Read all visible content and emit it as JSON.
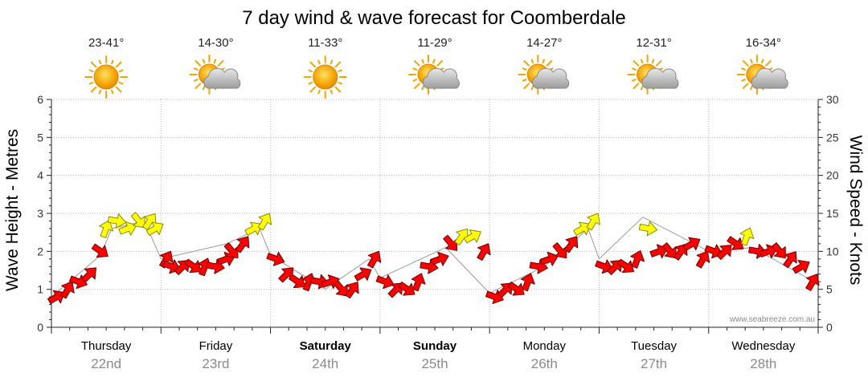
{
  "chart_data": {
    "type": "line",
    "title": "7 day wind & wave forecast for Coomberdale",
    "ylabel_left": "Wave Height - Metres",
    "ylabel_right": "Wind Speed - Knots",
    "ylim_left": [
      0,
      6
    ],
    "ylim_right": [
      0,
      30
    ],
    "left_ticks": [
      "0",
      "1",
      "2",
      "3",
      "4",
      "5",
      "6"
    ],
    "right_ticks": [
      "0",
      "5",
      "10",
      "15",
      "20",
      "25",
      "30"
    ],
    "grid": true,
    "days": [
      {
        "name": "Thursday",
        "date": "22nd",
        "temp": "23-41°",
        "weather": "sunny",
        "bold": false
      },
      {
        "name": "Friday",
        "date": "23rd",
        "temp": "14-30°",
        "weather": "partly-cloudy",
        "bold": false
      },
      {
        "name": "Saturday",
        "date": "24th",
        "temp": "11-33°",
        "weather": "sunny",
        "bold": true
      },
      {
        "name": "Sunday",
        "date": "25th",
        "temp": "11-29°",
        "weather": "partly-cloudy",
        "bold": true
      },
      {
        "name": "Monday",
        "date": "26th",
        "temp": "14-27°",
        "weather": "partly-cloudy",
        "bold": false
      },
      {
        "name": "Tuesday",
        "date": "27th",
        "temp": "12-31°",
        "weather": "partly-cloudy",
        "bold": false
      },
      {
        "name": "Wednesday",
        "date": "28th",
        "temp": "16-34°",
        "weather": "partly-cloudy",
        "bold": false
      }
    ],
    "series": [
      {
        "name": "Wind Speed - Knots",
        "axis": "right",
        "unit": "day",
        "points": [
          [
            0.0,
            4
          ],
          [
            0.1,
            5
          ],
          [
            0.2,
            6
          ],
          [
            0.3,
            7
          ],
          [
            0.4,
            10
          ],
          [
            0.45,
            13
          ],
          [
            0.55,
            14
          ],
          [
            0.65,
            13
          ],
          [
            0.75,
            14
          ],
          [
            0.85,
            14
          ],
          [
            0.9,
            13
          ],
          [
            1.0,
            9
          ],
          [
            1.05,
            8
          ],
          [
            1.15,
            8
          ],
          [
            1.25,
            8
          ],
          [
            1.35,
            8
          ],
          [
            1.45,
            8
          ],
          [
            1.55,
            9
          ],
          [
            1.6,
            10
          ],
          [
            1.7,
            11
          ],
          [
            1.8,
            13
          ],
          [
            1.9,
            14
          ],
          [
            2.0,
            9
          ],
          [
            2.1,
            7
          ],
          [
            2.2,
            6
          ],
          [
            2.3,
            6
          ],
          [
            2.4,
            6
          ],
          [
            2.5,
            6
          ],
          [
            2.6,
            5
          ],
          [
            2.7,
            5
          ],
          [
            2.8,
            7
          ],
          [
            2.9,
            9
          ],
          [
            3.0,
            6
          ],
          [
            3.1,
            5
          ],
          [
            3.2,
            5
          ],
          [
            3.3,
            6
          ],
          [
            3.4,
            8
          ],
          [
            3.5,
            9
          ],
          [
            3.6,
            11
          ],
          [
            3.7,
            12
          ],
          [
            3.8,
            12
          ],
          [
            3.9,
            10
          ],
          [
            4.0,
            4
          ],
          [
            4.1,
            5
          ],
          [
            4.2,
            5
          ],
          [
            4.3,
            6
          ],
          [
            4.4,
            8
          ],
          [
            4.5,
            9
          ],
          [
            4.6,
            10
          ],
          [
            4.7,
            11
          ],
          [
            4.8,
            13
          ],
          [
            4.9,
            14
          ],
          [
            5.0,
            8
          ],
          [
            5.1,
            8
          ],
          [
            5.2,
            8
          ],
          [
            5.3,
            9
          ],
          [
            5.4,
            13
          ],
          [
            5.5,
            10
          ],
          [
            5.6,
            10
          ],
          [
            5.7,
            10
          ],
          [
            5.8,
            11
          ],
          [
            5.9,
            9
          ],
          [
            6.0,
            10
          ],
          [
            6.1,
            10
          ],
          [
            6.2,
            11
          ],
          [
            6.3,
            12
          ],
          [
            6.4,
            10
          ],
          [
            6.5,
            10
          ],
          [
            6.6,
            10
          ],
          [
            6.7,
            9
          ],
          [
            6.8,
            8
          ],
          [
            6.9,
            6
          ]
        ]
      },
      {
        "name": "Wave Height - Metres",
        "axis": "left",
        "unit": "day",
        "points": [
          [
            0.0,
            0.8
          ],
          [
            0.45,
            1.9
          ],
          [
            0.55,
            2.6
          ],
          [
            0.85,
            2.8
          ],
          [
            1.0,
            1.8
          ],
          [
            1.6,
            2.2
          ],
          [
            1.9,
            2.6
          ],
          [
            2.0,
            1.9
          ],
          [
            2.5,
            1.0
          ],
          [
            2.9,
            1.8
          ],
          [
            3.0,
            1.3
          ],
          [
            3.6,
            2.1
          ],
          [
            4.0,
            0.9
          ],
          [
            4.5,
            1.6
          ],
          [
            4.9,
            2.6
          ],
          [
            5.0,
            1.8
          ],
          [
            5.4,
            2.9
          ],
          [
            6.0,
            2.0
          ],
          [
            6.4,
            2.1
          ],
          [
            6.9,
            1.3
          ]
        ]
      }
    ],
    "credit": "www.seabreeze.com.au"
  }
}
